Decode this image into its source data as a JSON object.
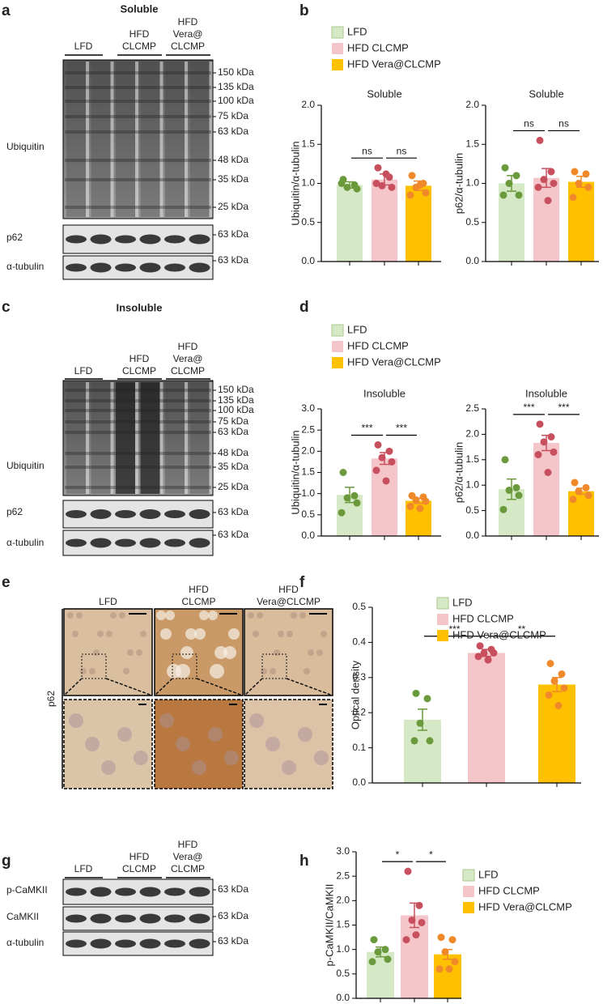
{
  "figure": {
    "panel_letters": [
      "a",
      "b",
      "c",
      "d",
      "e",
      "f",
      "g",
      "h"
    ]
  },
  "blots": [
    {
      "title": "Soluble",
      "lanes": [
        [
          "LFD"
        ],
        [
          "HFD",
          "CLCMP"
        ],
        [
          "HFD",
          "Vera@",
          "CLCMP"
        ]
      ],
      "rows": [
        {
          "name": "Ubiquitin",
          "markers": [
            "150 kDa",
            "135 kDa",
            "100 kDa",
            "75 kDa",
            "63 kDa",
            "48 kDa",
            "35 kDa",
            "25 kDa"
          ]
        },
        {
          "name": "p62",
          "markers": [
            "63 kDa"
          ]
        },
        {
          "name": "α-tubulin",
          "markers": [
            "63 kDa"
          ]
        }
      ]
    },
    {
      "title": "Insoluble",
      "lanes": [
        [
          "LFD"
        ],
        [
          "HFD",
          "CLCMP"
        ],
        [
          "HFD",
          "Vera@",
          "CLCMP"
        ]
      ],
      "rows": [
        {
          "name": "Ubiquitin",
          "markers": [
            "150 kDa",
            "135 kDa",
            "100 kDa",
            "75 kDa",
            "63 kDa",
            "48 kDa",
            "35 kDa",
            "25 kDa"
          ]
        },
        {
          "name": "p62",
          "markers": [
            "63 kDa"
          ]
        },
        {
          "name": "α-tubulin",
          "markers": [
            "63 kDa"
          ]
        }
      ]
    },
    {
      "lanes": [
        [
          "LFD"
        ],
        [
          "HFD",
          "CLCMP"
        ],
        [
          "HFD",
          "Vera@",
          "CLCMP"
        ]
      ],
      "rows": [
        {
          "name": "p-CaMKII",
          "markers": [
            "63 kDa"
          ]
        },
        {
          "name": "CaMKII",
          "markers": [
            "63 kDa"
          ]
        },
        {
          "name": "α-tubulin",
          "markers": [
            "63 kDa"
          ]
        }
      ]
    }
  ],
  "histology": {
    "columns": [
      [
        "LFD"
      ],
      [
        "HFD",
        "CLCMP"
      ],
      [
        "HFD",
        "Vera@CLCMP"
      ]
    ],
    "row_label": "p62"
  },
  "chart_data": [
    {
      "type": "bar",
      "title": "Soluble",
      "ylabel": "Ubiquitin/α-tubulin",
      "legend": "top",
      "ylim": [
        0,
        2
      ],
      "yticks": [
        {
          "value": 0,
          "label": "0.0"
        },
        0.5,
        {
          "value": 1,
          "label": "1.0"
        },
        1.5,
        {
          "value": 2,
          "label": "2.0"
        }
      ],
      "significance": [
        "ns",
        "ns"
      ],
      "series": [
        {
          "name": "LFD",
          "color": "#d6e9c6",
          "point_color": "#6b9a3c",
          "value": 0.98,
          "error": 0.04,
          "points": [
            1.05,
            0.98,
            0.95,
            0.93,
            1.0
          ]
        },
        {
          "name": "HFD CLCMP",
          "color": "#f4c6ca",
          "point_color": "#c8505e",
          "value": 1.05,
          "error": 0.07,
          "points": [
            1.2,
            1.08,
            0.97,
            0.95,
            1.0,
            1.12
          ]
        },
        {
          "name": "HFD Vera@CLCMP",
          "color": "#ffc000",
          "point_color": "#f0892a",
          "value": 0.97,
          "error": 0.06,
          "points": [
            1.1,
            1.0,
            0.95,
            0.88,
            0.85,
            0.98
          ]
        }
      ]
    },
    {
      "type": "bar",
      "title": "Soluble",
      "ylabel": "p62/α-tubulin",
      "ylim": [
        0,
        2
      ],
      "yticks": [
        {
          "value": 0,
          "label": "0.0"
        },
        0.5,
        {
          "value": 1,
          "label": "1.0"
        },
        1.5,
        {
          "value": 2,
          "label": "2.0"
        }
      ],
      "significance": [
        "ns",
        "ns"
      ],
      "series": [
        {
          "name": "LFD",
          "color": "#d6e9c6",
          "point_color": "#6b9a3c",
          "value": 1.0,
          "error": 0.1,
          "points": [
            1.2,
            1.1,
            1.0,
            0.85,
            0.85
          ]
        },
        {
          "name": "HFD CLCMP",
          "color": "#f4c6ca",
          "point_color": "#c8505e",
          "value": 1.07,
          "error": 0.12,
          "points": [
            1.55,
            1.15,
            1.05,
            1.0,
            0.95,
            0.78
          ]
        },
        {
          "name": "HFD Vera@CLCMP",
          "color": "#ffc000",
          "point_color": "#f0892a",
          "value": 1.02,
          "error": 0.07,
          "points": [
            1.15,
            1.12,
            1.0,
            0.95,
            0.82
          ]
        }
      ]
    },
    {
      "type": "bar",
      "title": "Insoluble",
      "ylabel": "Ubiquitin/α-tubulin",
      "legend": "top",
      "ylim": [
        0,
        3
      ],
      "yticks": [
        {
          "value": 0,
          "label": "0.0"
        },
        0.5,
        {
          "value": 1,
          "label": "1.0"
        },
        1.5,
        {
          "value": 2,
          "label": "2.0"
        },
        2.5,
        {
          "value": 3,
          "label": "3.0"
        }
      ],
      "significance": [
        "***",
        "***"
      ],
      "series": [
        {
          "name": "LFD",
          "color": "#d6e9c6",
          "point_color": "#6b9a3c",
          "value": 0.97,
          "error": 0.18,
          "points": [
            1.5,
            0.95,
            0.9,
            0.78,
            0.55
          ]
        },
        {
          "name": "HFD CLCMP",
          "color": "#f4c6ca",
          "point_color": "#c8505e",
          "value": 1.83,
          "error": 0.14,
          "points": [
            2.15,
            2.0,
            1.85,
            1.75,
            1.55,
            1.3
          ]
        },
        {
          "name": "HFD Vera@CLCMP",
          "color": "#ffc000",
          "point_color": "#f0892a",
          "value": 0.83,
          "error": 0.06,
          "points": [
            0.95,
            0.92,
            0.85,
            0.82,
            0.7,
            0.65
          ]
        }
      ]
    },
    {
      "type": "bar",
      "title": "Insoluble",
      "ylabel": "p62/α-tubulin",
      "ylim": [
        0,
        2.5
      ],
      "yticks": [
        {
          "value": 0,
          "label": "0.0"
        },
        0.5,
        {
          "value": 1,
          "label": "1.0"
        },
        1.5,
        {
          "value": 2,
          "label": "2.0"
        },
        2.5
      ],
      "significance": [
        "***",
        "***"
      ],
      "series": [
        {
          "name": "LFD",
          "color": "#d6e9c6",
          "point_color": "#6b9a3c",
          "value": 0.92,
          "error": 0.2,
          "points": [
            1.5,
            0.95,
            0.9,
            0.8,
            0.52
          ]
        },
        {
          "name": "HFD CLCMP",
          "color": "#f4c6ca",
          "point_color": "#c8505e",
          "value": 1.83,
          "error": 0.15,
          "points": [
            2.2,
            1.95,
            1.85,
            1.65,
            1.6,
            1.25
          ]
        },
        {
          "name": "HFD Vera@CLCMP",
          "color": "#ffc000",
          "point_color": "#f0892a",
          "value": 0.88,
          "error": 0.06,
          "points": [
            1.05,
            0.95,
            0.88,
            0.8,
            0.72
          ]
        }
      ]
    },
    {
      "type": "bar",
      "ylabel": "Optical density",
      "legend": "top",
      "ylim": [
        0,
        0.5
      ],
      "yticks": [
        {
          "value": 0,
          "label": "0.0"
        },
        0.1,
        0.2,
        0.3,
        0.4,
        0.5
      ],
      "significance": [
        "***",
        "**"
      ],
      "series": [
        {
          "name": "LFD",
          "color": "#d6e9c6",
          "point_color": "#6b9a3c",
          "value": 0.18,
          "error": 0.03,
          "points": [
            0.255,
            0.24,
            0.17,
            0.12,
            0.12
          ]
        },
        {
          "name": "HFD CLCMP",
          "color": "#f4c6ca",
          "point_color": "#c8505e",
          "value": 0.37,
          "error": 0.01,
          "points": [
            0.39,
            0.38,
            0.37,
            0.37,
            0.36,
            0.35
          ]
        },
        {
          "name": "HFD Vera@CLCMP",
          "color": "#ffc000",
          "point_color": "#f0892a",
          "value": 0.28,
          "error": 0.02,
          "points": [
            0.34,
            0.31,
            0.29,
            0.27,
            0.25,
            0.22
          ]
        }
      ]
    },
    {
      "type": "bar",
      "ylabel": "p-CaMKII/CaMKII",
      "legend": "right",
      "ylim": [
        0,
        3
      ],
      "yticks": [
        {
          "value": 0,
          "label": "0.0"
        },
        0.5,
        {
          "value": 1,
          "label": "1.0"
        },
        1.5,
        {
          "value": 2,
          "label": "2.0"
        },
        2.5,
        {
          "value": 3,
          "label": "3.0"
        }
      ],
      "significance": [
        "*",
        "*"
      ],
      "series": [
        {
          "name": "LFD",
          "color": "#d6e9c6",
          "point_color": "#6b9a3c",
          "value": 0.95,
          "error": 0.1,
          "points": [
            1.2,
            1.0,
            0.95,
            0.8,
            0.75
          ]
        },
        {
          "name": "HFD CLCMP",
          "color": "#f4c6ca",
          "point_color": "#c8505e",
          "value": 1.7,
          "error": 0.25,
          "points": [
            2.6,
            1.9,
            1.6,
            1.55,
            1.2,
            1.3
          ]
        },
        {
          "name": "HFD Vera@CLCMP",
          "color": "#ffc000",
          "point_color": "#f0892a",
          "value": 0.9,
          "error": 0.1,
          "points": [
            1.25,
            1.2,
            0.95,
            0.75,
            0.6,
            0.6
          ]
        }
      ]
    }
  ]
}
